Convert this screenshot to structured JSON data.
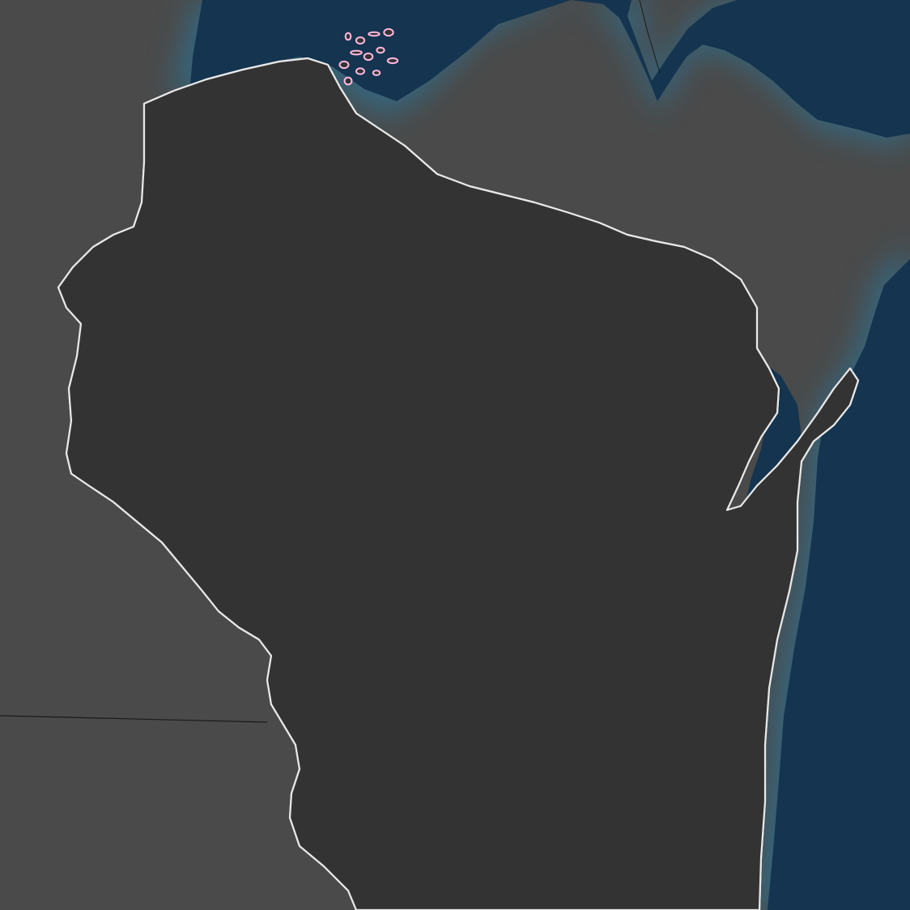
{
  "map": {
    "region": "Wisconsin",
    "labels": [],
    "colors": {
      "surrounding_land": "#4a4a4a",
      "state_fill": "#333333",
      "water_deep": "#14344f",
      "water_shore_glow": "#2d6f8f",
      "state_outline": "#e8e8e8",
      "feature_dense": "#c8205a",
      "feature_mid": "#d84c80",
      "feature_light": "#ffb8e0",
      "border_line": "#1a1a1a"
    },
    "layers": [
      "background-land",
      "lake-superior",
      "lake-michigan",
      "state-polygon",
      "hydro-features",
      "highlight-routes"
    ]
  }
}
